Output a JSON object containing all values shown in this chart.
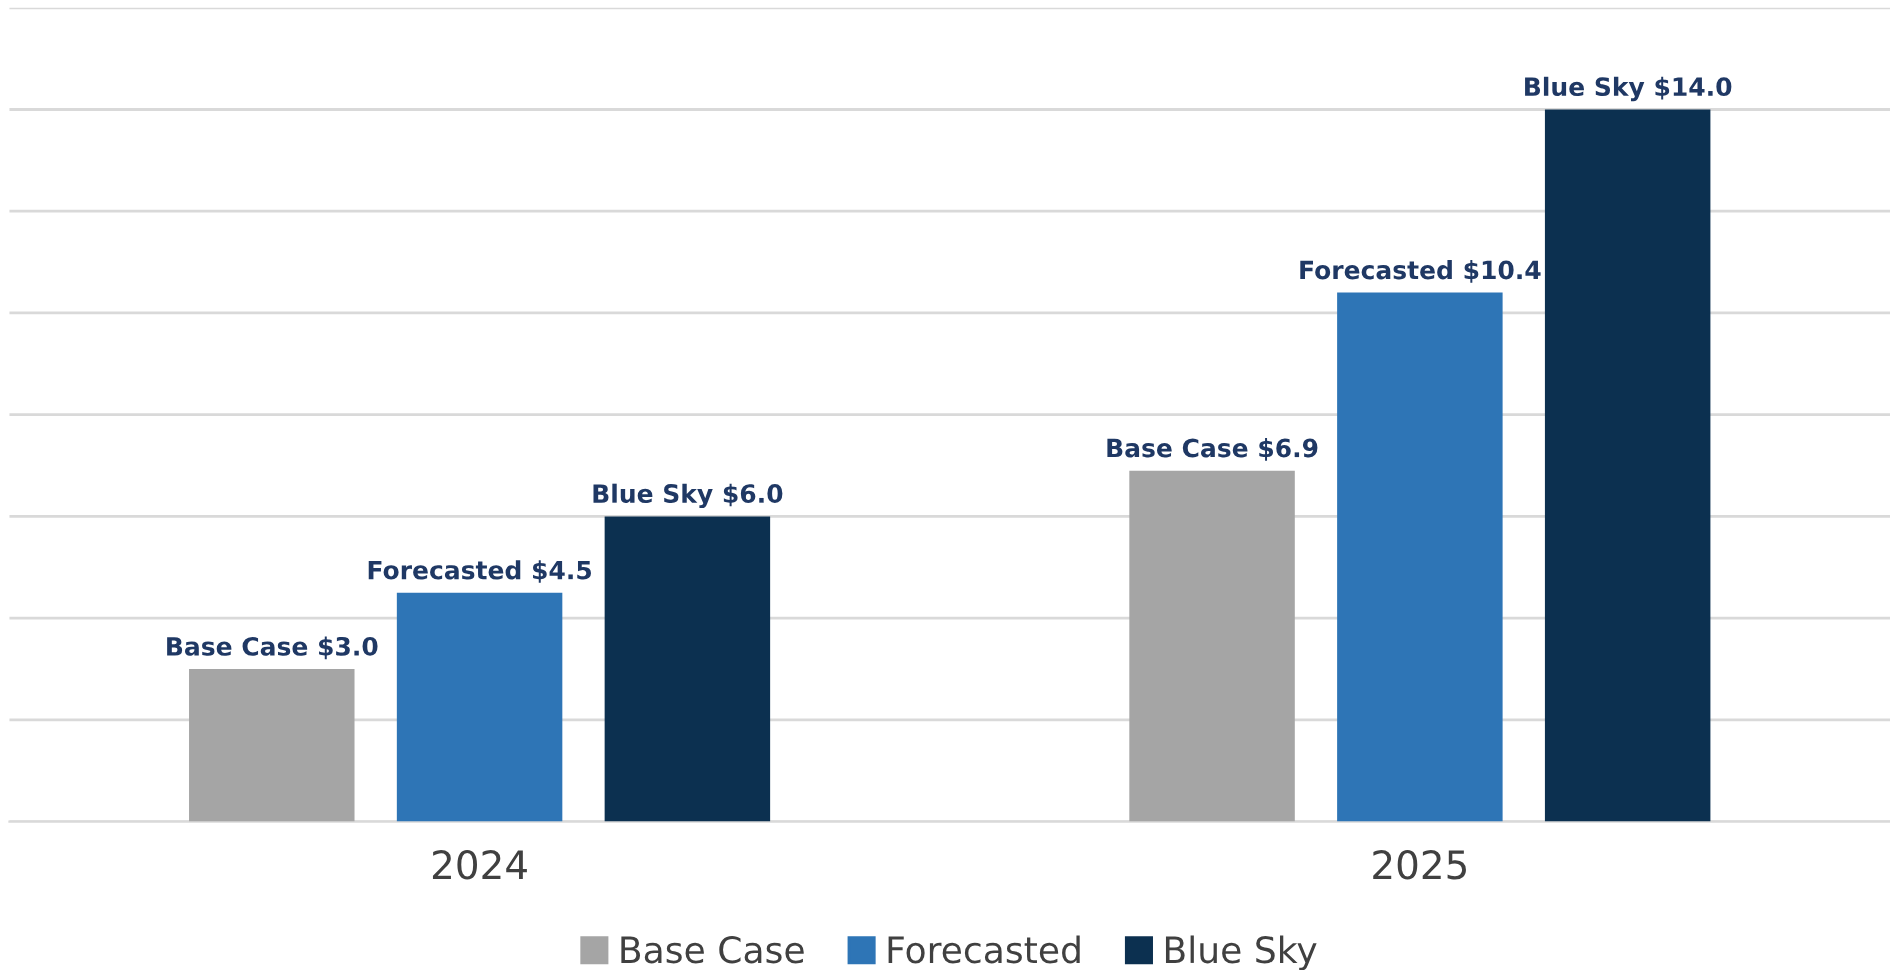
{
  "chart_data": {
    "type": "bar",
    "categories": [
      "2024",
      "2025"
    ],
    "series": [
      {
        "name": "Base Case",
        "color": "#a5a5a5",
        "values": [
          3.0,
          6.9
        ],
        "value_labels": [
          "Base Case $3.0",
          "Base Case $6.9"
        ]
      },
      {
        "name": "Forecasted",
        "color": "#2e75b6",
        "values": [
          4.5,
          10.4
        ],
        "value_labels": [
          "Forecasted $4.5",
          "Forecasted $10.4"
        ]
      },
      {
        "name": "Blue Sky",
        "color": "#0c3050",
        "values": [
          6.0,
          14.0
        ],
        "value_labels": [
          "Blue Sky $6.0",
          "Blue Sky $14.0"
        ]
      }
    ],
    "ylim": [
      0,
      16
    ],
    "yticks": [
      {
        "value": 0,
        "label": null
      },
      {
        "value": 2,
        "label": null
      },
      {
        "value": 4,
        "label": null
      },
      {
        "value": 6,
        "label": null
      },
      {
        "value": 8,
        "label": null
      },
      {
        "value": 10,
        "label": null
      },
      {
        "value": 12,
        "label": null
      },
      {
        "value": 14,
        "label": null
      },
      {
        "value": 16,
        "label": null
      }
    ],
    "tick_labels": "x",
    "grid": "y",
    "legend": "bottom"
  }
}
